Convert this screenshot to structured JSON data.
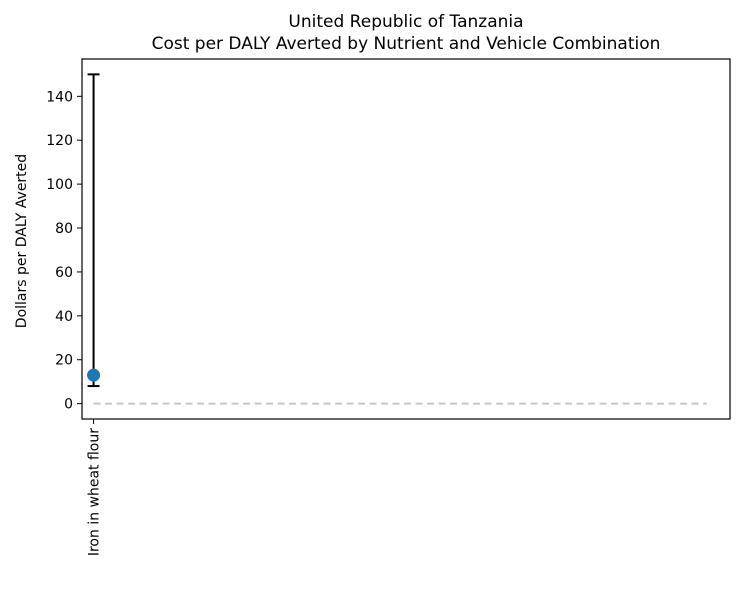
{
  "chart_data": {
    "type": "scatter",
    "title_lines": [
      "United Republic of Tanzania",
      "Cost per DALY Averted by Nutrient and Vehicle Combination"
    ],
    "xlabel": "",
    "ylabel": "Dollars per DALY Averted",
    "categories": [
      "Iron in wheat flour"
    ],
    "series": [
      {
        "values": [
          13
        ],
        "error_low": [
          8
        ],
        "error_high": [
          150
        ]
      }
    ],
    "reference_line": {
      "y": 0,
      "style": "dashed"
    },
    "ylim": [
      -7,
      157
    ],
    "xlim": [
      -0.05,
      2.75
    ],
    "yticks": [
      0,
      20,
      40,
      60,
      80,
      100,
      120,
      140
    ],
    "grid": false,
    "colors": {
      "marker": "#1f77b4",
      "errorbar": "#000000",
      "reference_line": "#c8c8c8",
      "axes": "#000000"
    }
  }
}
